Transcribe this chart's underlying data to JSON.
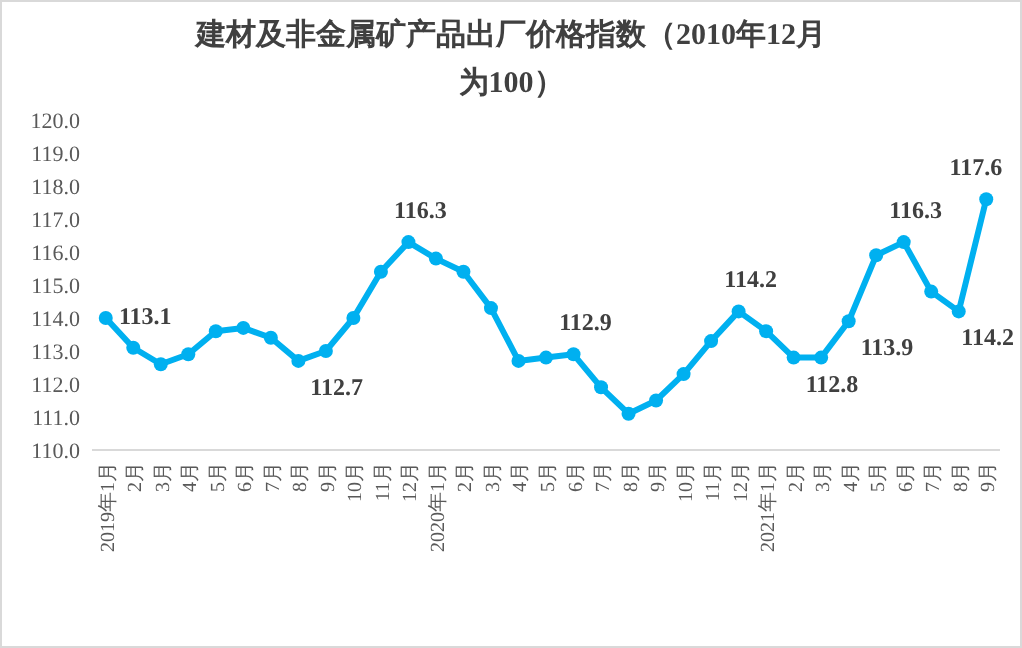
{
  "chart_data": {
    "type": "line",
    "title": "建材及非金属矿产品出厂价格指数（2010年12月为100）",
    "categories": [
      "2019年1月",
      "2月",
      "3月",
      "4月",
      "5月",
      "6月",
      "7月",
      "8月",
      "9月",
      "10月",
      "11月",
      "12月",
      "2020年1月",
      "2月",
      "3月",
      "4月",
      "5月",
      "6月",
      "7月",
      "8月",
      "9月",
      "10月",
      "11月",
      "12月",
      "2021年1月",
      "2月",
      "3月",
      "4月",
      "5月",
      "6月",
      "7月",
      "8月",
      "9月"
    ],
    "series": [
      {
        "color": "#00b0f0",
        "values": [
          114.0,
          113.1,
          112.6,
          112.9,
          113.6,
          113.7,
          113.4,
          112.7,
          113.0,
          114.0,
          115.4,
          116.3,
          115.8,
          115.4,
          114.3,
          112.7,
          112.8,
          112.9,
          111.9,
          111.1,
          111.5,
          112.3,
          113.3,
          114.2,
          113.6,
          112.8,
          112.8,
          113.9,
          115.9,
          116.3,
          114.8,
          114.2,
          117.6
        ],
        "value_labels": [
          null,
          "113.1",
          null,
          null,
          null,
          null,
          null,
          "112.7",
          null,
          null,
          null,
          "116.3",
          null,
          null,
          null,
          null,
          null,
          "112.9",
          null,
          null,
          null,
          null,
          null,
          "114.2",
          null,
          "112.8",
          null,
          "113.9",
          null,
          "116.3",
          null,
          "114.2",
          "117.6"
        ]
      }
    ],
    "ylim": [
      110,
      120
    ],
    "yticks": [
      {
        "value": 110,
        "label": "110.0"
      },
      {
        "value": 111,
        "label": "111.0"
      },
      {
        "value": 112,
        "label": "112.0"
      },
      {
        "value": 113,
        "label": "113.0"
      },
      {
        "value": 114,
        "label": "114.0"
      },
      {
        "value": 115,
        "label": "115.0"
      },
      {
        "value": 116,
        "label": "116.0"
      },
      {
        "value": 117,
        "label": "117.0"
      },
      {
        "value": 118,
        "label": "118.0"
      },
      {
        "value": 119,
        "label": "119.0"
      },
      {
        "value": 120,
        "label": "120.0"
      }
    ],
    "grid": false,
    "marker": "circle",
    "line_style": "solid"
  }
}
